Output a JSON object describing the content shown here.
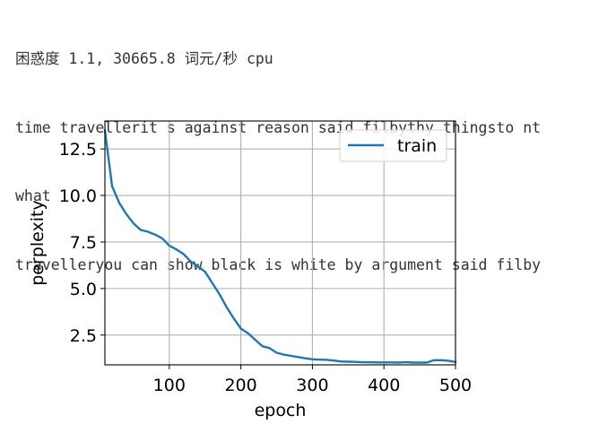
{
  "output": {
    "lines": [
      "困惑度 1.1, 30665.8 词元/秒 cpu",
      "time travellerit s against reason said filbythy thingsto nt",
      "what",
      "travelleryou can show black is white by argument said filby"
    ]
  },
  "chart_data": {
    "type": "line",
    "xlabel": "epoch",
    "ylabel": "perplexity",
    "xlim": [
      10,
      500
    ],
    "ylim": [
      0.9,
      14.0
    ],
    "xticks": [
      100,
      200,
      300,
      400,
      500
    ],
    "yticks": [
      2.5,
      5.0,
      7.5,
      10.0,
      12.5
    ],
    "xtick_labels": [
      "100",
      "200",
      "300",
      "400",
      "500"
    ],
    "ytick_labels": [
      "2.5",
      "5.0",
      "7.5",
      "10.0",
      "12.5"
    ],
    "grid": true,
    "legend_position": "top-right",
    "series": [
      {
        "name": "train",
        "color": "#1f77b4",
        "x": [
          10,
          20,
          30,
          40,
          50,
          60,
          70,
          80,
          90,
          100,
          110,
          120,
          130,
          140,
          150,
          160,
          170,
          180,
          190,
          200,
          210,
          220,
          230,
          240,
          250,
          260,
          270,
          280,
          290,
          300,
          310,
          320,
          330,
          340,
          350,
          360,
          370,
          380,
          390,
          400,
          410,
          420,
          430,
          440,
          450,
          460,
          470,
          480,
          490,
          500
        ],
        "y": [
          13.5,
          10.5,
          9.6,
          9.0,
          8.5,
          8.15,
          8.05,
          7.9,
          7.7,
          7.3,
          7.1,
          6.85,
          6.45,
          6.2,
          5.9,
          5.3,
          4.7,
          4.0,
          3.4,
          2.85,
          2.6,
          2.25,
          1.9,
          1.8,
          1.55,
          1.45,
          1.38,
          1.32,
          1.25,
          1.2,
          1.18,
          1.17,
          1.13,
          1.08,
          1.07,
          1.06,
          1.04,
          1.04,
          1.03,
          1.03,
          1.03,
          1.02,
          1.04,
          1.02,
          1.02,
          1.02,
          1.15,
          1.15,
          1.12,
          1.05
        ]
      }
    ]
  }
}
